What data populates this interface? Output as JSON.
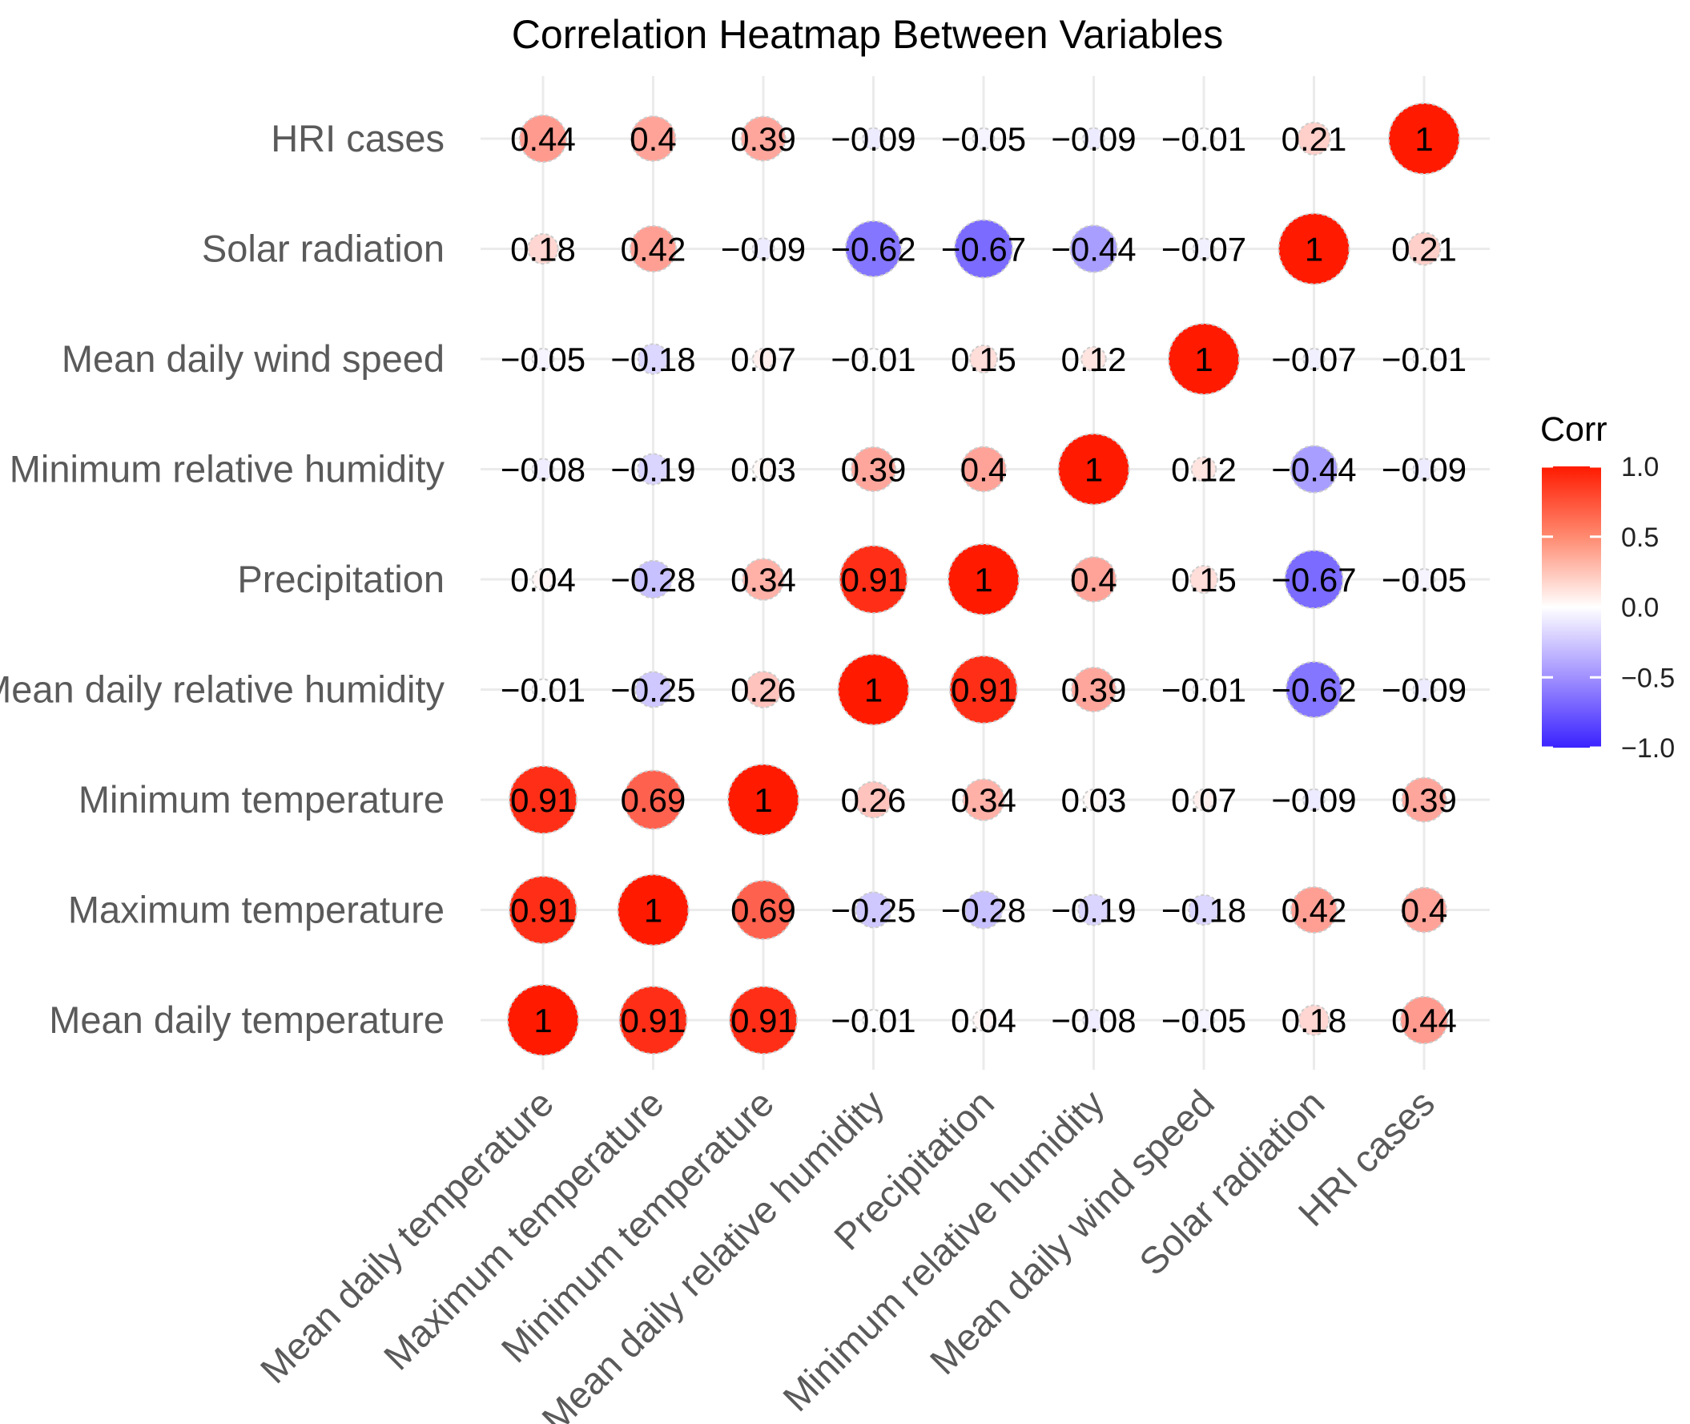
{
  "chart_data": {
    "type": "heatmap",
    "title": "Correlation Heatmap Between Variables",
    "variables": [
      "Mean daily temperature",
      "Maximum temperature",
      "Minimum temperature",
      "Mean daily relative humidity",
      "Precipitation",
      "Minimum relative humidity",
      "Mean daily wind speed",
      "Solar radiation",
      "HRI cases"
    ],
    "value_labels": [
      [
        "1",
        "0.91",
        "0.91",
        "−0.01",
        "0.04",
        "−0.08",
        "−0.05",
        "0.18",
        "0.44"
      ],
      [
        "0.91",
        "1",
        "0.69",
        "−0.25",
        "−0.28",
        "−0.19",
        "−0.18",
        "0.42",
        "0.4"
      ],
      [
        "0.91",
        "0.69",
        "1",
        "0.26",
        "0.34",
        "0.03",
        "0.07",
        "−0.09",
        "0.39"
      ],
      [
        "−0.01",
        "−0.25",
        "0.26",
        "1",
        "0.91",
        "0.39",
        "−0.01",
        "−0.62",
        "−0.09"
      ],
      [
        "0.04",
        "−0.28",
        "0.34",
        "0.91",
        "1",
        "0.4",
        "0.15",
        "−0.67",
        "−0.05"
      ],
      [
        "−0.08",
        "−0.19",
        "0.03",
        "0.39",
        "0.4",
        "1",
        "0.12",
        "−0.44",
        "−0.09"
      ],
      [
        "−0.05",
        "−0.18",
        "0.07",
        "−0.01",
        "0.15",
        "0.12",
        "1",
        "−0.07",
        "−0.01"
      ],
      [
        "0.18",
        "0.42",
        "−0.09",
        "−0.62",
        "−0.67",
        "−0.44",
        "−0.07",
        "1",
        "0.21"
      ],
      [
        "0.44",
        "0.4",
        "0.39",
        "−0.09",
        "−0.05",
        "−0.09",
        "−0.01",
        "0.21",
        "1"
      ]
    ],
    "values": [
      [
        1,
        0.91,
        0.91,
        -0.01,
        0.04,
        -0.08,
        -0.05,
        0.18,
        0.44
      ],
      [
        0.91,
        1,
        0.69,
        -0.25,
        -0.28,
        -0.19,
        -0.18,
        0.42,
        0.4
      ],
      [
        0.91,
        0.69,
        1,
        0.26,
        0.34,
        0.03,
        0.07,
        -0.09,
        0.39
      ],
      [
        -0.01,
        -0.25,
        0.26,
        1,
        0.91,
        0.39,
        -0.01,
        -0.62,
        -0.09
      ],
      [
        0.04,
        -0.28,
        0.34,
        0.91,
        1,
        0.4,
        0.15,
        -0.67,
        -0.05
      ],
      [
        -0.08,
        -0.19,
        0.03,
        0.39,
        0.4,
        1,
        0.12,
        -0.44,
        -0.09
      ],
      [
        -0.05,
        -0.18,
        0.07,
        -0.01,
        0.15,
        0.12,
        1,
        -0.07,
        -0.01
      ],
      [
        0.18,
        0.42,
        -0.09,
        -0.62,
        -0.67,
        -0.44,
        -0.07,
        1,
        0.21
      ],
      [
        0.44,
        0.4,
        0.39,
        -0.09,
        -0.05,
        -0.09,
        -0.01,
        0.21,
        1
      ]
    ],
    "legend": {
      "title": "Corr",
      "range": [
        -1.0,
        1.0
      ],
      "ticks": [
        "1.0",
        "0.5",
        "0.0",
        "−0.5",
        "−1.0"
      ],
      "tick_values": [
        1.0,
        0.5,
        0.0,
        -0.5,
        -1.0
      ],
      "colors": {
        "low": "#3a22ff",
        "mid": "#ffffff",
        "high": "#ff1a00"
      },
      "placement": "right"
    },
    "grid": true
  }
}
